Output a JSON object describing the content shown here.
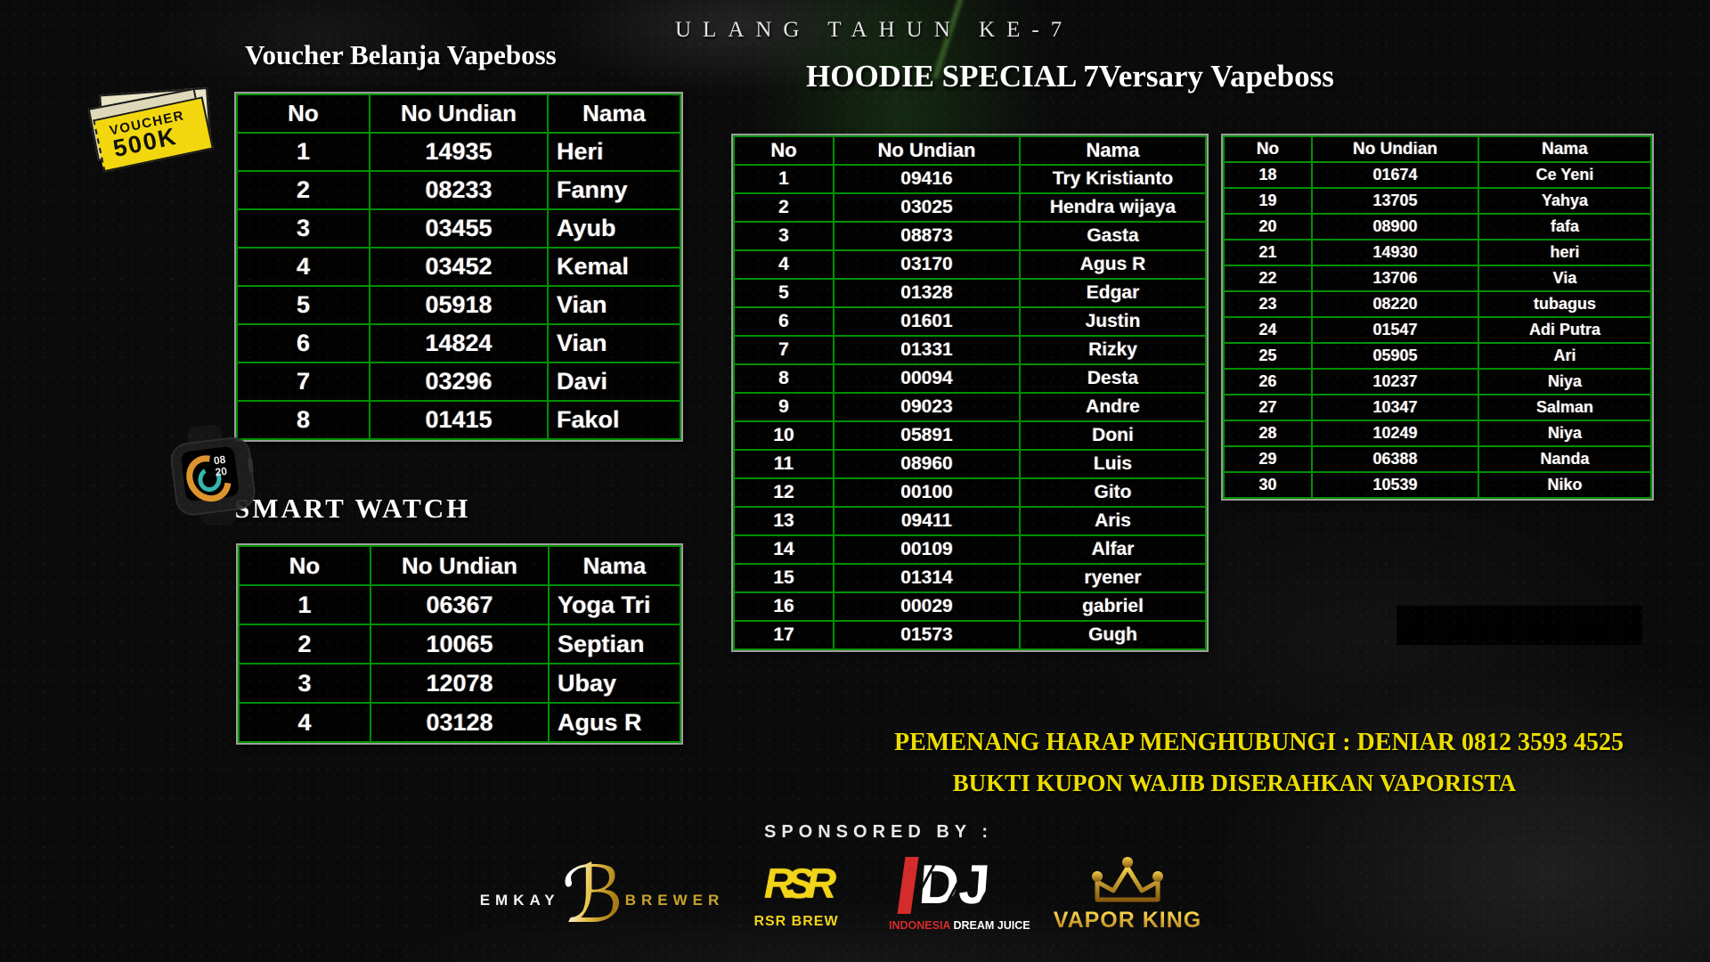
{
  "event_title": "ULANG TAHUN KE-7",
  "voucher_section": {
    "title": "Voucher Belanja Vapeboss",
    "badge": {
      "line1": "VOUCHER",
      "line2": "500K"
    },
    "table": {
      "headers": [
        "No",
        "No Undian",
        "Nama"
      ],
      "rows": [
        [
          "1",
          "14935",
          "Heri"
        ],
        [
          "2",
          "08233",
          "Fanny"
        ],
        [
          "3",
          "03455",
          "Ayub"
        ],
        [
          "4",
          "03452",
          "Kemal"
        ],
        [
          "5",
          "05918",
          "Vian"
        ],
        [
          "6",
          "14824",
          "Vian"
        ],
        [
          "7",
          "03296",
          "Davi"
        ],
        [
          "8",
          "01415",
          "Fakol"
        ]
      ]
    }
  },
  "smartwatch_section": {
    "title": "SMART WATCH",
    "watch_time": {
      "hh": "08",
      "mm": "20"
    },
    "table": {
      "headers": [
        "No",
        "No Undian",
        "Nama"
      ],
      "rows": [
        [
          "1",
          "06367",
          "Yoga Tri"
        ],
        [
          "2",
          "10065",
          "Septian"
        ],
        [
          "3",
          "12078",
          "Ubay"
        ],
        [
          "4",
          "03128",
          "Agus R"
        ]
      ]
    }
  },
  "hoodie_section": {
    "title": "HOODIE SPECIAL 7Versary Vapeboss",
    "table_left": {
      "headers": [
        "No",
        "No Undian",
        "Nama"
      ],
      "rows": [
        [
          "1",
          "09416",
          "Try Kristianto"
        ],
        [
          "2",
          "03025",
          "Hendra wijaya"
        ],
        [
          "3",
          "08873",
          "Gasta"
        ],
        [
          "4",
          "03170",
          "Agus R"
        ],
        [
          "5",
          "01328",
          "Edgar"
        ],
        [
          "6",
          "01601",
          "Justin"
        ],
        [
          "7",
          "01331",
          "Rizky"
        ],
        [
          "8",
          "00094",
          "Desta"
        ],
        [
          "9",
          "09023",
          "Andre"
        ],
        [
          "10",
          "05891",
          "Doni"
        ],
        [
          "11",
          "08960",
          "Luis"
        ],
        [
          "12",
          "00100",
          "Gito"
        ],
        [
          "13",
          "09411",
          "Aris"
        ],
        [
          "14",
          "00109",
          "Alfar"
        ],
        [
          "15",
          "01314",
          "ryener"
        ],
        [
          "16",
          "00029",
          "gabriel"
        ],
        [
          "17",
          "01573",
          "Gugh"
        ]
      ]
    },
    "table_right": {
      "headers": [
        "No",
        "No Undian",
        "Nama"
      ],
      "rows": [
        [
          "18",
          "01674",
          "Ce Yeni"
        ],
        [
          "19",
          "13705",
          "Yahya"
        ],
        [
          "20",
          "08900",
          "fafa"
        ],
        [
          "21",
          "14930",
          "heri"
        ],
        [
          "22",
          "13706",
          "Via"
        ],
        [
          "23",
          "08220",
          "tubagus"
        ],
        [
          "24",
          "01547",
          "Adi Putra"
        ],
        [
          "25",
          "05905",
          "Ari"
        ],
        [
          "26",
          "10237",
          "Niya"
        ],
        [
          "27",
          "10347",
          "Salman"
        ],
        [
          "28",
          "10249",
          "Niya"
        ],
        [
          "29",
          "06388",
          "Nanda"
        ],
        [
          "30",
          "10539",
          "Niko"
        ]
      ]
    }
  },
  "notices": {
    "line1": "PEMENANG HARAP MENGHUBUNGI : DENIAR 0812 3593 4525",
    "line2": "BUKTI KUPON WAJIB DISERAHKAN VAPORISTA"
  },
  "sponsors": {
    "label": "SPONSORED BY :",
    "emkay": {
      "word_left": "EMKAY",
      "monogram": "ℬ",
      "word_right": "BREWER"
    },
    "rsr": {
      "monogram": "RSR",
      "label": "RSR BREW"
    },
    "idj": {
      "monogram": "DJ",
      "label_red": "INDONESIA",
      "label_white": " DREAM JUICE"
    },
    "vaporking": {
      "label": "VAPOR KING"
    }
  },
  "colors": {
    "table_border_green": "#009100",
    "table_outer_border": "#9c9c9c",
    "notice_yellow": "#ecdc00",
    "sponsor_yellow": "#f2d418",
    "idj_red": "#d42b2b",
    "gold": "#c9a22c",
    "voucher_yellow": "#f2d70e"
  }
}
